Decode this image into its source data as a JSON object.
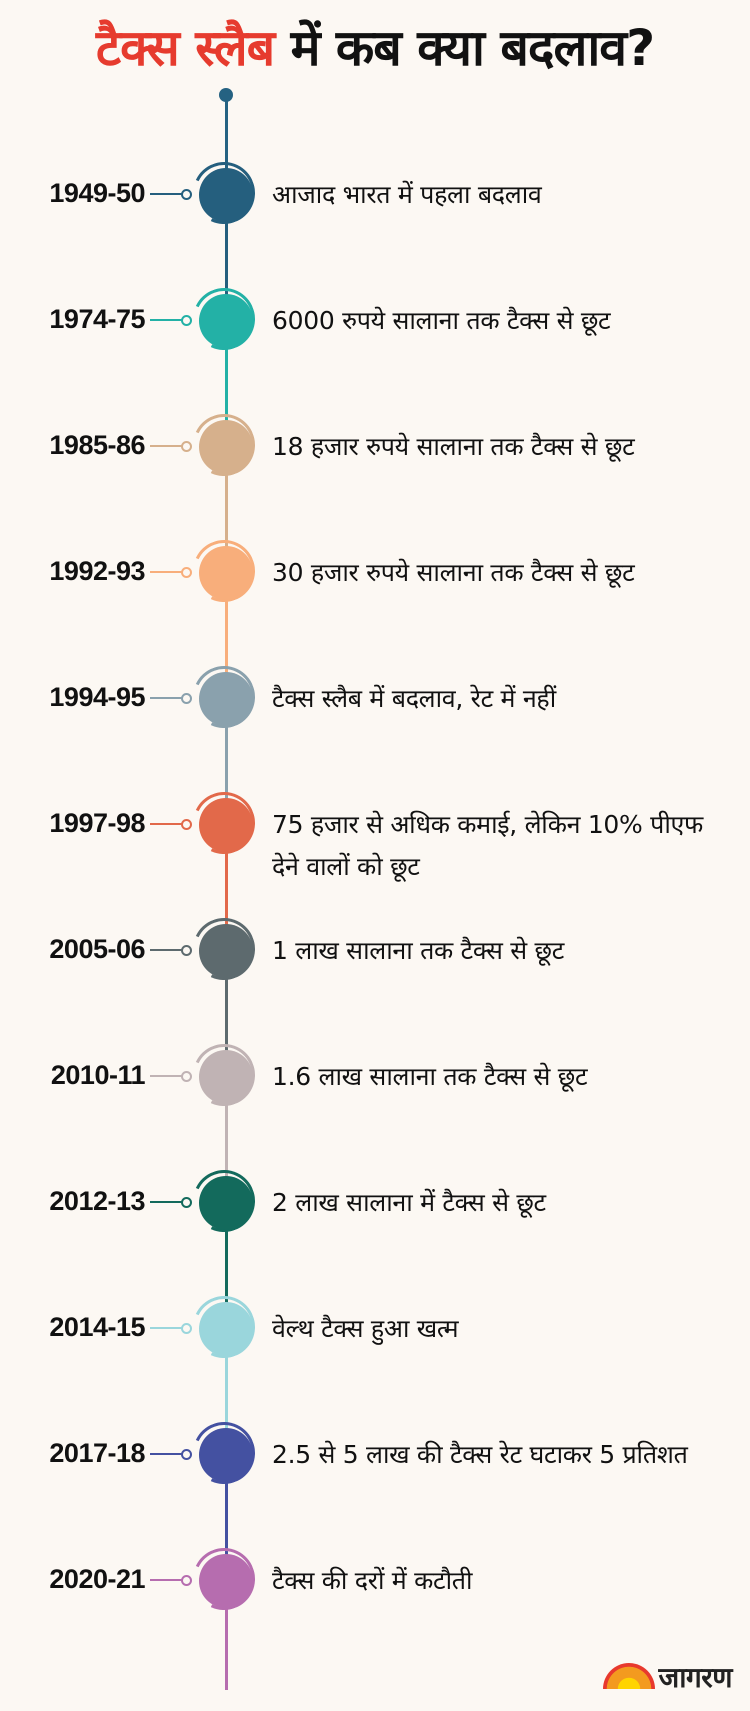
{
  "title": {
    "highlight": "टैक्स स्लैब",
    "rest": "में कब क्या बदलाव?"
  },
  "brand": {
    "name": "जागरण"
  },
  "events": [
    {
      "year": "1949-50",
      "text": "आजाद भारत में पहला बदलाव",
      "color": "#255f7e"
    },
    {
      "year": "1974-75",
      "text": "6000 रुपये सालाना तक टैक्स से छूट",
      "color": "#23b1a6"
    },
    {
      "year": "1985-86",
      "text": "18 हजार रुपये सालाना तक टैक्स से छूट",
      "color": "#d6b08c"
    },
    {
      "year": "1992-93",
      "text": "30 हजार रुपये सालाना तक टैक्स से छूट",
      "color": "#f8ae7b"
    },
    {
      "year": "1994-95",
      "text": "टैक्स स्लैब में बदलाव, रेट में नहीं",
      "color": "#8aa1ad"
    },
    {
      "year": "1997-98",
      "text": "75 हजार से अधिक कमाई, लेकिन 10% पीएफ देने वालों को छूट",
      "color": "#e2694a"
    },
    {
      "year": "2005-06",
      "text": "1 लाख सालाना तक टैक्स से छूट",
      "color": "#5d6a6e"
    },
    {
      "year": "2010-11",
      "text": "1.6 लाख सालाना तक टैक्स से छूट",
      "color": "#c0b3b4"
    },
    {
      "year": "2012-13",
      "text": "2 लाख सालाना में टैक्स से छूट",
      "color": "#136a5c"
    },
    {
      "year": "2014-15",
      "text": "वेल्थ टैक्स हुआ खत्म",
      "color": "#9ad6dc"
    },
    {
      "year": "2017-18",
      "text": "2.5 से 5 लाख की टैक्स रेट घटाकर 5 प्रतिशत",
      "color": "#4451a1"
    },
    {
      "year": "2020-21",
      "text": "टैक्स की दरों में कटौती",
      "color": "#b66daf"
    }
  ]
}
